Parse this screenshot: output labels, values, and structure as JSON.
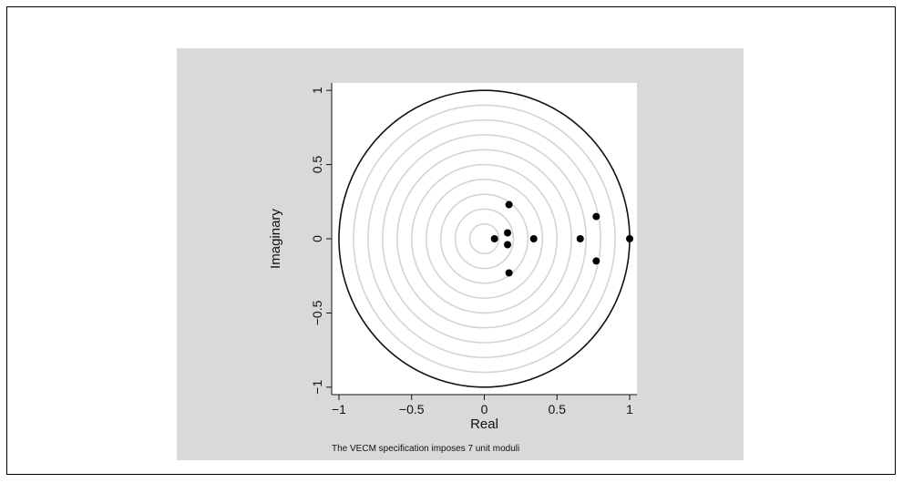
{
  "chart_data": {
    "type": "scatter",
    "xlabel": "Real",
    "ylabel": "Imaginary",
    "note": "The VECM specification imposes 7 unit moduli",
    "xlim": [
      -1.05,
      1.05
    ],
    "ylim": [
      -1.05,
      1.05
    ],
    "x_ticks": [
      -1,
      -0.5,
      0,
      0.5,
      1
    ],
    "x_tick_labels": [
      "−1",
      "−0.5",
      "0",
      "0.5",
      "1"
    ],
    "y_ticks": [
      -1,
      -0.5,
      0,
      0.5,
      1
    ],
    "y_tick_labels": [
      "−1",
      "−0.5",
      "0",
      "0.5",
      "1"
    ],
    "unit_circle_radius": 1,
    "reference_circle_radii": [
      0.1,
      0.2,
      0.3,
      0.4,
      0.5,
      0.6,
      0.7,
      0.8,
      0.9
    ],
    "points": [
      {
        "x": 1.0,
        "y": 0.0
      },
      {
        "x": 0.77,
        "y": 0.15
      },
      {
        "x": 0.77,
        "y": -0.15
      },
      {
        "x": 0.66,
        "y": 0.0
      },
      {
        "x": 0.34,
        "y": 0.0
      },
      {
        "x": 0.17,
        "y": 0.23
      },
      {
        "x": 0.17,
        "y": -0.23
      },
      {
        "x": 0.16,
        "y": 0.04
      },
      {
        "x": 0.16,
        "y": -0.04
      },
      {
        "x": 0.07,
        "y": 0.0
      }
    ],
    "colors": {
      "panel": "#d9d9d9",
      "plot": "#ffffff",
      "unit_circle": "#111111",
      "reference_circles": "#d4d4d4",
      "points": "#000000"
    }
  }
}
